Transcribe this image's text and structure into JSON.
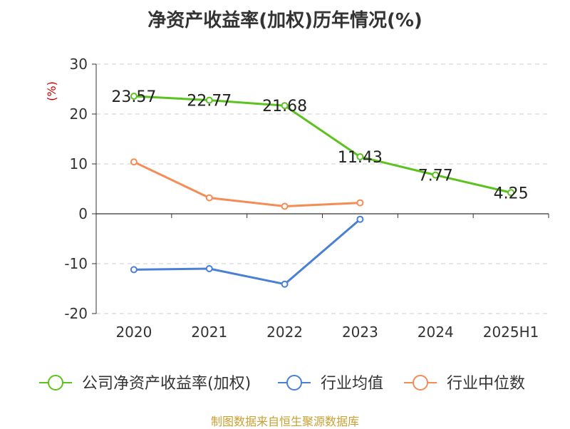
{
  "chart_data": {
    "type": "line",
    "title": "净资产收益率(加权)历年情况(%)",
    "ylabel": "(%)",
    "xlabel": "",
    "categories": [
      "2020",
      "2021",
      "2022",
      "2023",
      "2024",
      "2025H1"
    ],
    "ylim": [
      -20,
      30
    ],
    "yticks": [
      "30",
      "20",
      "10",
      "0",
      "-10",
      "-20"
    ],
    "ytick_values": [
      30,
      20,
      10,
      0,
      -10,
      -20
    ],
    "grid": true,
    "legend_position": "bottom",
    "series": [
      {
        "name": "公司净资产收益率(加权)",
        "color": "#5cc21f",
        "values": [
          23.57,
          22.77,
          21.68,
          11.43,
          7.77,
          4.25
        ],
        "labels": [
          "23.57",
          "22.77",
          "21.68",
          "11.43",
          "7.77",
          "4.25"
        ]
      },
      {
        "name": "行业均值",
        "color": "#4a7fd6",
        "values": [
          -11.2,
          -11.0,
          -14.1,
          -1.1,
          null,
          null
        ]
      },
      {
        "name": "行业中位数",
        "color": "#f58b55",
        "values": [
          10.4,
          3.2,
          1.5,
          2.2,
          null,
          null
        ]
      }
    ]
  },
  "footer": {
    "source": "制图数据来自恒生聚源数据库"
  }
}
